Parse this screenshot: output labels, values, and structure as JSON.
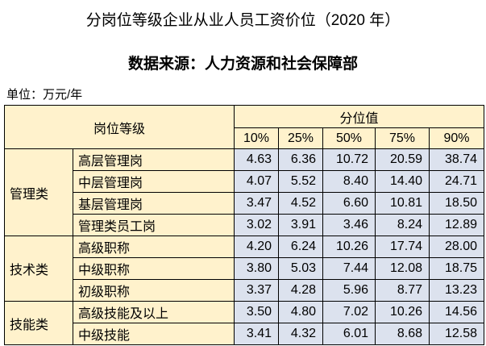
{
  "header": {
    "title": "分岗位等级企业从业人员工资价位（2020 年）",
    "subtitle": "数据来源：人力资源和社会保障部",
    "unit": "单位：万元/年"
  },
  "table": {
    "corner": "岗位等级",
    "percentile_header": "分位值",
    "columns": [
      "10%",
      "25%",
      "50%",
      "75%",
      "90%"
    ],
    "groups": [
      {
        "name": "管理类",
        "rows": [
          {
            "label": "高层管理岗",
            "values": [
              "4.63",
              "6.36",
              "10.72",
              "20.59",
              "38.74"
            ]
          },
          {
            "label": "中层管理岗",
            "values": [
              "4.07",
              "5.52",
              "8.40",
              "14.40",
              "24.71"
            ]
          },
          {
            "label": "基层管理岗",
            "values": [
              "3.47",
              "4.52",
              "6.60",
              "10.81",
              "18.50"
            ]
          },
          {
            "label": "管理类员工岗",
            "values": [
              "3.02",
              "3.91",
              "3.46",
              "8.24",
              "12.89"
            ]
          }
        ]
      },
      {
        "name": "技术类",
        "rows": [
          {
            "label": "高级职称",
            "values": [
              "4.20",
              "6.24",
              "10.26",
              "17.74",
              "28.00"
            ]
          },
          {
            "label": "中级职称",
            "values": [
              "3.80",
              "5.03",
              "7.44",
              "12.08",
              "18.75"
            ]
          },
          {
            "label": "初级职称",
            "values": [
              "3.37",
              "4.28",
              "5.96",
              "8.77",
              "13.23"
            ]
          }
        ]
      },
      {
        "name": "技能类",
        "rows": [
          {
            "label": "高级技能及以上",
            "values": [
              "3.50",
              "4.80",
              "7.02",
              "10.26",
              "14.56"
            ]
          },
          {
            "label": "中级技能",
            "values": [
              "3.41",
              "4.32",
              "6.01",
              "8.68",
              "12.58"
            ]
          }
        ]
      }
    ]
  }
}
